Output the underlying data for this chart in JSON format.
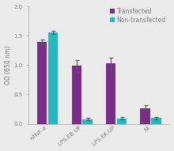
{
  "categories": [
    "hTNF-α",
    "LPS-EB UP",
    "LPS-EK UP",
    "NI"
  ],
  "transfected_values": [
    1.4,
    0.99,
    1.03,
    0.27
  ],
  "non_transfected_values": [
    1.56,
    0.08,
    0.09,
    0.1
  ],
  "transfected_errors": [
    0.04,
    0.1,
    0.1,
    0.05
  ],
  "non_transfected_errors": [
    0.03,
    0.02,
    0.02,
    0.02
  ],
  "transfected_color": "#7B2D8B",
  "non_transfected_color": "#26B8C0",
  "ylabel": "OD (650 nm)",
  "ylim": [
    0.0,
    2.0
  ],
  "yticks": [
    0.0,
    0.5,
    1.0,
    1.5,
    2.0
  ],
  "legend_labels": [
    "Transfected",
    "Non-transfected"
  ],
  "bar_width": 0.28,
  "background_color": "#ebebeb",
  "axis_fontsize": 5.5,
  "tick_fontsize": 5.0,
  "legend_fontsize": 5.5,
  "error_color": "#555555",
  "spine_color": "#b0b0b0",
  "text_color": "#808080"
}
